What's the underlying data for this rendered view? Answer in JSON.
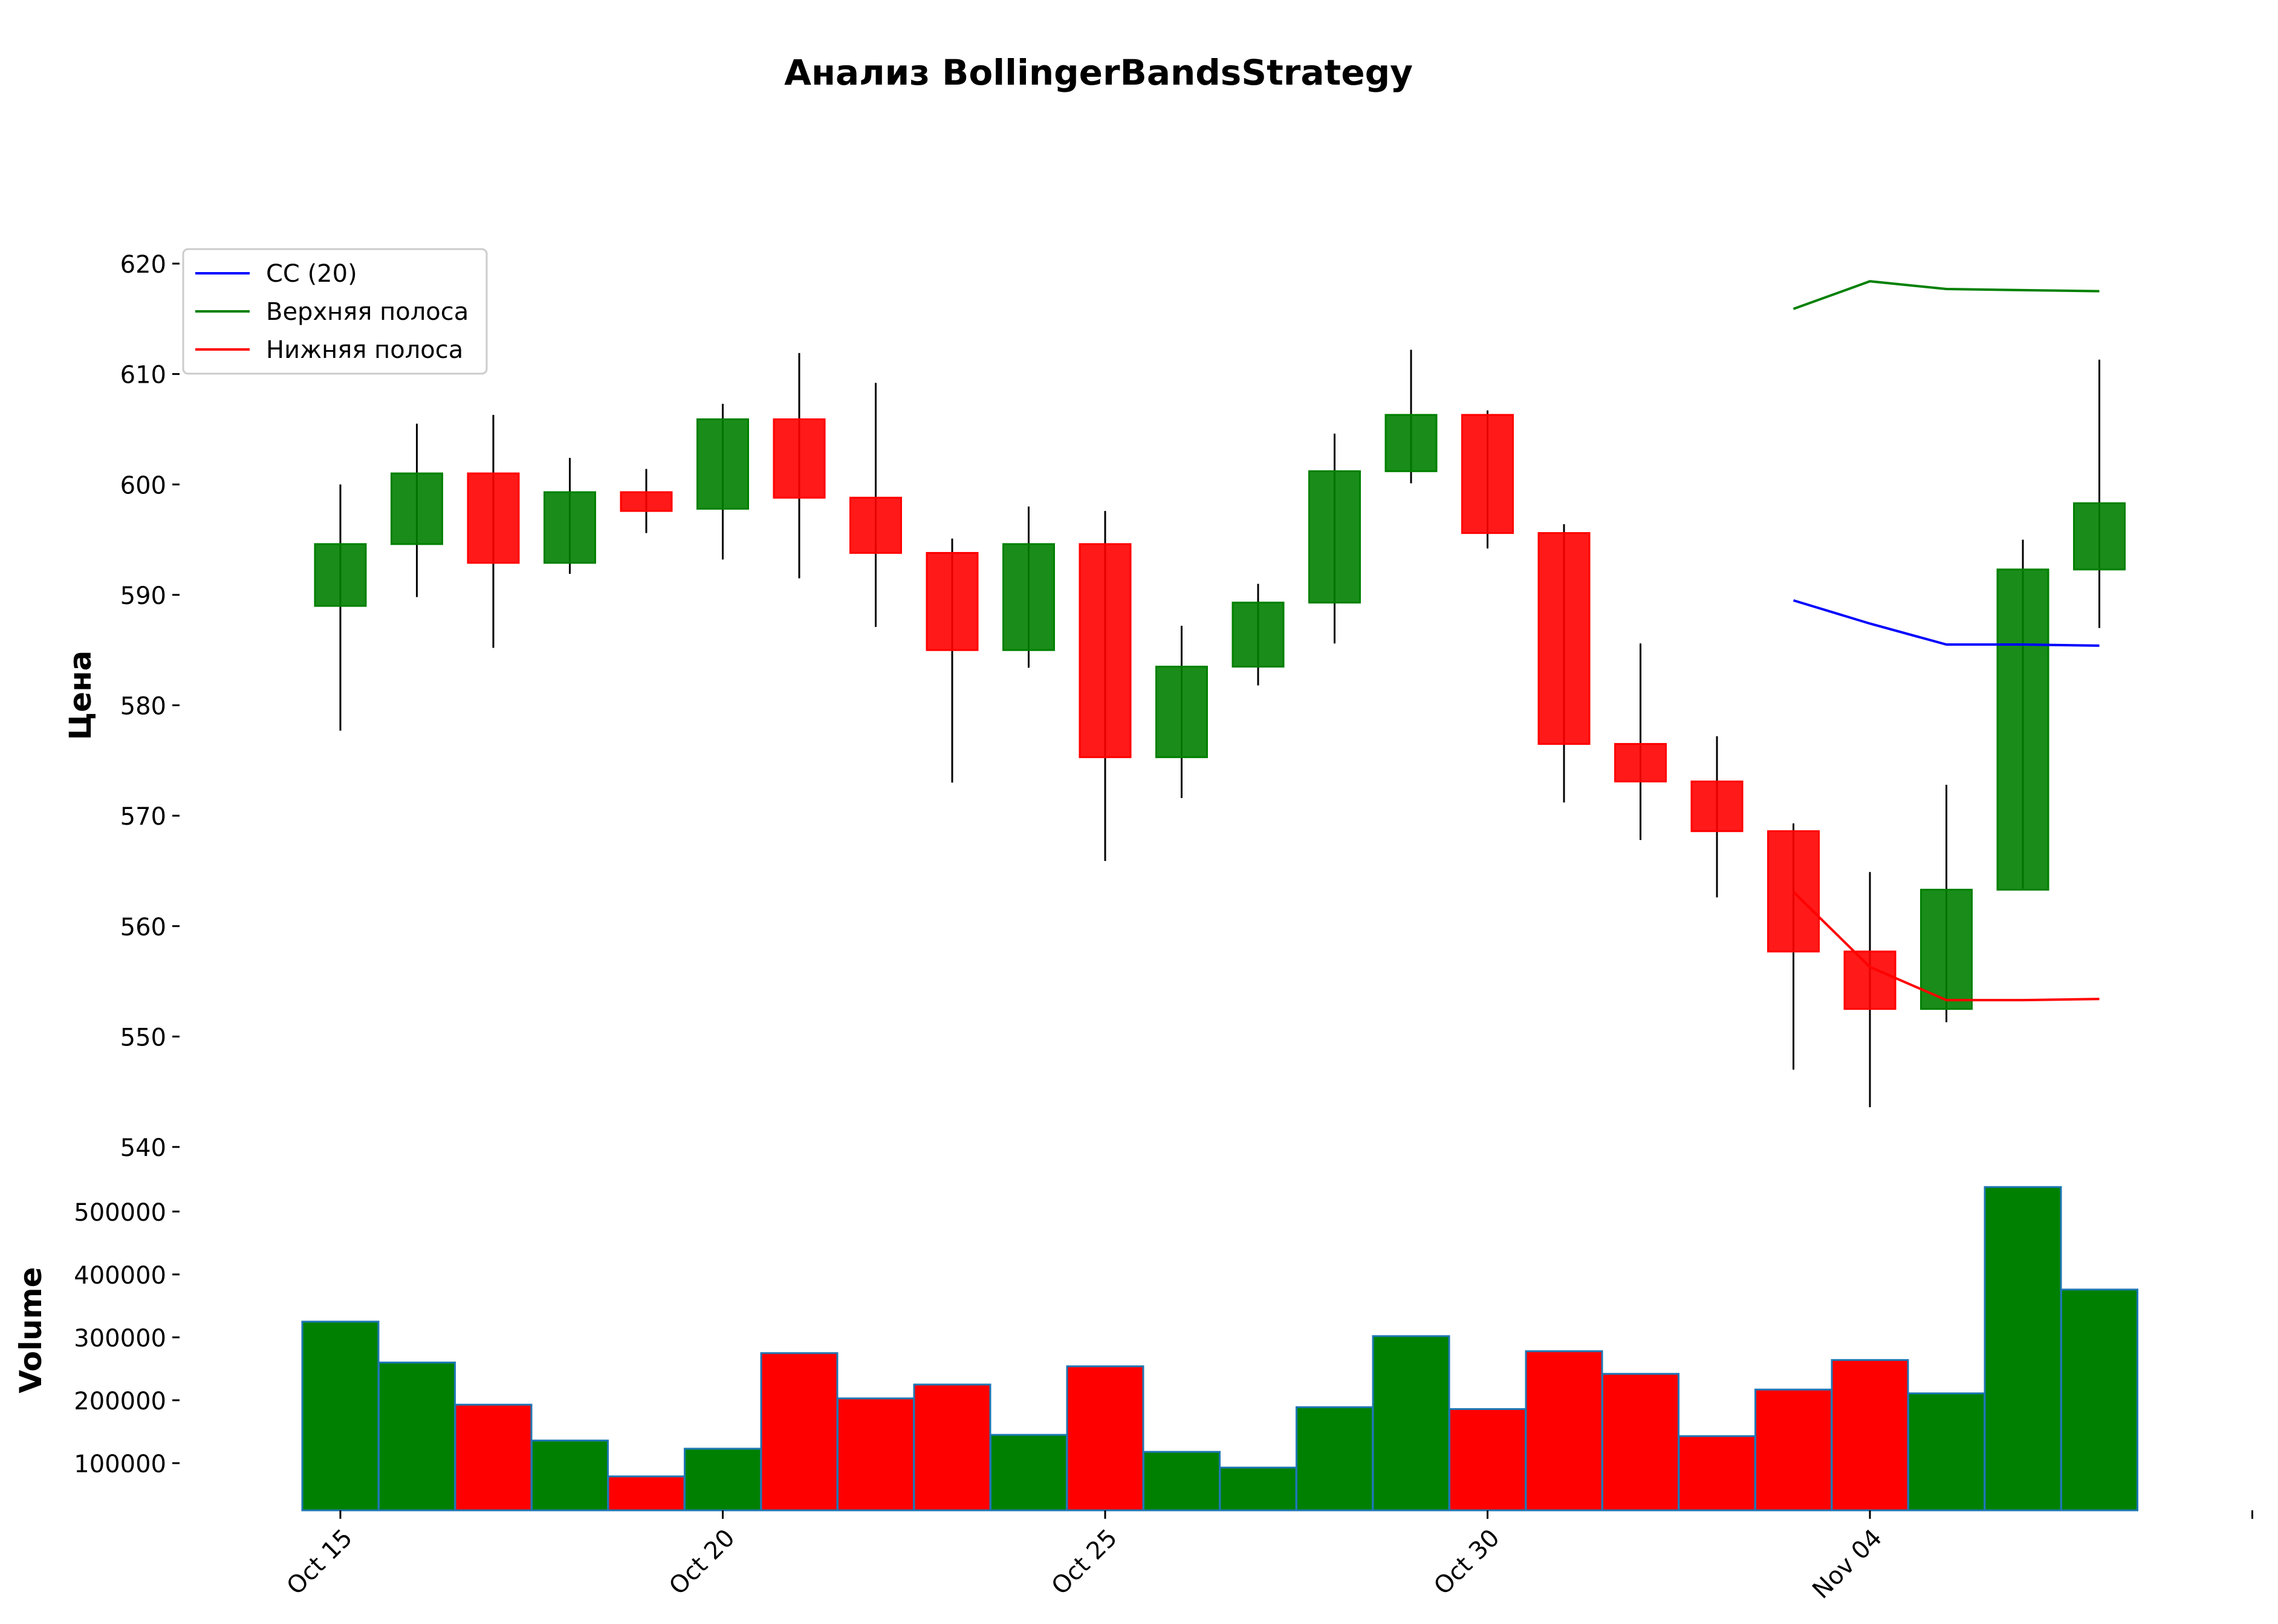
{
  "chart_data": {
    "type": "candlestick",
    "title": "Анализ BollingerBandsStrategy",
    "price_panel": {
      "ylabel": "Цена",
      "ylim": [
        540,
        620
      ],
      "yticks": [
        540,
        550,
        560,
        570,
        580,
        590,
        600,
        610,
        620
      ]
    },
    "volume_panel": {
      "ylabel": "Volume",
      "yticks": [
        100000,
        200000,
        300000,
        400000,
        500000
      ],
      "ylim": [
        25000,
        545000
      ]
    },
    "x_tick_labels": [
      {
        "index": 0,
        "label": "Oct 15"
      },
      {
        "index": 5,
        "label": "Oct 20"
      },
      {
        "index": 10,
        "label": "Oct 25"
      },
      {
        "index": 15,
        "label": "Oct 30"
      },
      {
        "index": 20,
        "label": "Nov 04"
      },
      {
        "index": 25,
        "label": ""
      }
    ],
    "candles": [
      {
        "open": 589,
        "high": 600,
        "low": 577.7,
        "close": 594.6,
        "volume": 325000
      },
      {
        "open": 594.6,
        "high": 605.5,
        "low": 589.8,
        "close": 601,
        "volume": 260000
      },
      {
        "open": 601,
        "high": 606.3,
        "low": 585.2,
        "close": 592.9,
        "volume": 193000
      },
      {
        "open": 592.9,
        "high": 602.4,
        "low": 591.9,
        "close": 599.3,
        "volume": 136000
      },
      {
        "open": 599.3,
        "high": 601.4,
        "low": 595.6,
        "close": 597.6,
        "volume": 79000
      },
      {
        "open": 597.8,
        "high": 607.3,
        "low": 593.2,
        "close": 605.9,
        "volume": 123000
      },
      {
        "open": 605.9,
        "high": 611.9,
        "low": 591.5,
        "close": 598.8,
        "volume": 275000
      },
      {
        "open": 598.8,
        "high": 609.2,
        "low": 587.1,
        "close": 593.8,
        "volume": 203000
      },
      {
        "open": 593.8,
        "high": 595.1,
        "low": 573,
        "close": 585,
        "volume": 225000
      },
      {
        "open": 585,
        "high": 598,
        "low": 583.4,
        "close": 594.6,
        "volume": 145000
      },
      {
        "open": 594.6,
        "high": 597.6,
        "low": 565.9,
        "close": 575.3,
        "volume": 254000
      },
      {
        "open": 575.3,
        "high": 587.2,
        "low": 571.6,
        "close": 583.5,
        "volume": 118000
      },
      {
        "open": 583.5,
        "high": 591,
        "low": 581.8,
        "close": 589.3,
        "volume": 93000
      },
      {
        "open": 589.3,
        "high": 604.6,
        "low": 585.6,
        "close": 601.2,
        "volume": 189000
      },
      {
        "open": 601.2,
        "high": 612.2,
        "low": 600.1,
        "close": 606.3,
        "volume": 302000
      },
      {
        "open": 606.3,
        "high": 606.7,
        "low": 594.2,
        "close": 595.6,
        "volume": 186000
      },
      {
        "open": 595.6,
        "high": 596.4,
        "low": 571.2,
        "close": 576.5,
        "volume": 278000
      },
      {
        "open": 576.5,
        "high": 585.6,
        "low": 567.8,
        "close": 573.1,
        "volume": 242000
      },
      {
        "open": 573.1,
        "high": 577.2,
        "low": 562.6,
        "close": 568.6,
        "volume": 143000
      },
      {
        "open": 568.6,
        "high": 569.3,
        "low": 547,
        "close": 557.7,
        "volume": 217000
      },
      {
        "open": 557.7,
        "high": 564.9,
        "low": 543.6,
        "close": 552.5,
        "volume": 264000
      },
      {
        "open": 552.5,
        "high": 572.8,
        "low": 551.3,
        "close": 563.3,
        "volume": 211000
      },
      {
        "open": 563.3,
        "high": 595,
        "low": 563.3,
        "close": 592.3,
        "volume": 539000
      },
      {
        "open": 592.3,
        "high": 611.3,
        "low": 587,
        "close": 598.3,
        "volume": 376000
      }
    ],
    "series": [
      {
        "name": "СС (20)",
        "color": "#0000ff",
        "start_index": 19,
        "values": [
          589.5,
          587.4,
          585.5,
          585.5,
          585.4
        ]
      },
      {
        "name": "Верхняя полоса",
        "color": "#008000",
        "start_index": 19,
        "values": [
          615.9,
          618.4,
          617.7,
          617.6,
          617.5
        ]
      },
      {
        "name": "Нижняя полоса",
        "color": "#ff0000",
        "start_index": 19,
        "values": [
          563.1,
          556.3,
          553.3,
          553.3,
          553.4
        ]
      }
    ],
    "legend_position": "top-left",
    "colors": {
      "up": "#008000",
      "down": "#ff0000",
      "wick": "#000000",
      "volume_edge": "#1f77b4"
    }
  }
}
